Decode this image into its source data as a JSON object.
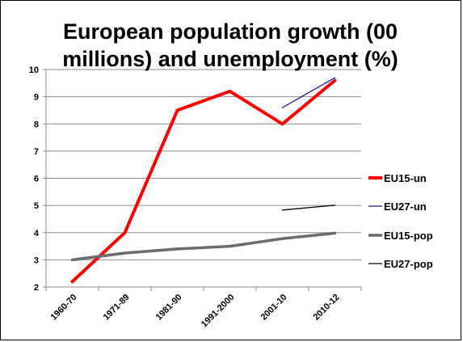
{
  "chart_data": {
    "type": "line",
    "title_line1": "European population growth (00",
    "title_line2": "millions) and unemployment (%)",
    "categories": [
      "1960-70",
      "1971-89",
      "1981-90",
      "1991-2000",
      "2001-10",
      "2010-12"
    ],
    "ylim": [
      2,
      10
    ],
    "yticks": [
      "2",
      "3",
      "4",
      "5",
      "6",
      "7",
      "8",
      "9",
      "10"
    ],
    "grid": true,
    "legend_position": "right",
    "series": [
      {
        "name": "EU15-un",
        "color": "#ff0000",
        "width": 4,
        "values": [
          2.2,
          4.0,
          8.5,
          9.2,
          8.0,
          9.6
        ]
      },
      {
        "name": "EU27-un",
        "color": "#1f1f8f",
        "width": 1.3,
        "values": [
          null,
          null,
          null,
          null,
          8.6,
          9.7
        ]
      },
      {
        "name": "EU15-pop",
        "color": "#6b6b6b",
        "width": 3.5,
        "values": [
          3.0,
          3.25,
          3.4,
          3.5,
          3.78,
          3.98
        ]
      },
      {
        "name": "EU27-pop",
        "color": "#000000",
        "width": 1.3,
        "values": [
          null,
          null,
          null,
          null,
          4.83,
          5.01
        ]
      }
    ]
  }
}
